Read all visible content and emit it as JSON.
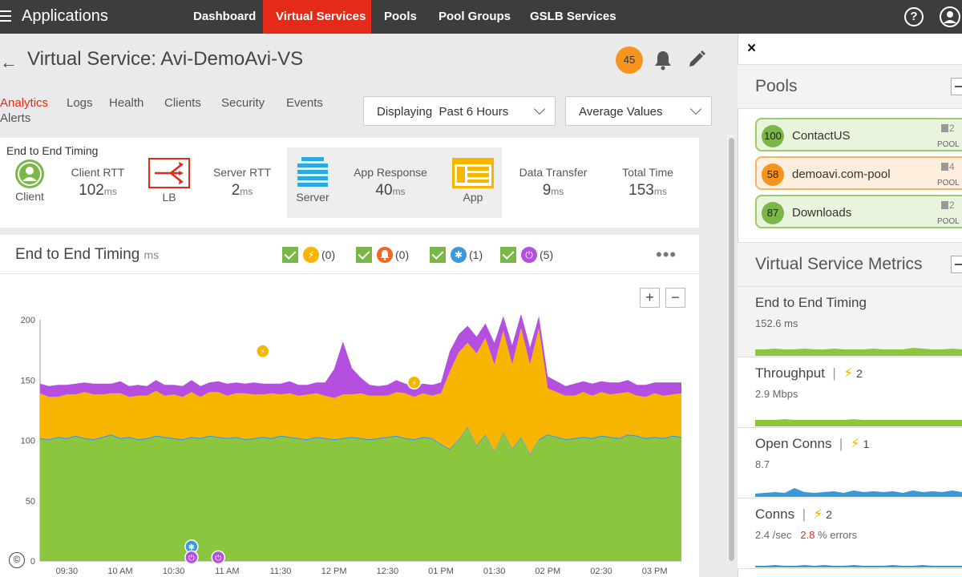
{
  "topbar": {
    "app_title": "Applications",
    "nav": [
      "Dashboard",
      "Virtual Services",
      "Pools",
      "Pool Groups",
      "GSLB Services"
    ],
    "active_nav": "Virtual Services",
    "help": "?"
  },
  "header": {
    "back": "←",
    "title": "Virtual Service: Avi-DemoAvi-VS",
    "alert_count": "45"
  },
  "tabs": [
    "Analytics",
    "Logs",
    "Health",
    "Clients",
    "Security",
    "Events",
    "Alerts"
  ],
  "filters": {
    "time_range": "Displaying  Past 6 Hours",
    "values_mode": "Average Values"
  },
  "timing": {
    "title": "End to End Timing",
    "client_label": "Client",
    "client_rtt_label": "Client RTT",
    "client_rtt_value": "102",
    "lb_label": "LB",
    "server_rtt_label": "Server RTT",
    "server_rtt_value": "2",
    "server_label": "Server",
    "app_response_label": "App Response",
    "app_response_value": "40",
    "app_label": "App",
    "data_transfer_label": "Data Transfer",
    "data_transfer_value": "9",
    "total_time_label": "Total Time",
    "total_time_value": "153",
    "unit": "ms"
  },
  "chart_card": {
    "title": "End to End Timing",
    "unit": "ms",
    "legend": [
      {
        "icon": "bolt-icon",
        "color": "#f7b500",
        "count": "(0)"
      },
      {
        "icon": "bell-icon",
        "color": "#f26522",
        "count": "(0)"
      },
      {
        "icon": "gear-icon",
        "color": "#3a9ad9",
        "count": "(1)"
      },
      {
        "icon": "power-icon",
        "color": "#b44fe0",
        "count": "(5)"
      }
    ],
    "more": "•••",
    "zoom_in": "+",
    "zoom_out": "−"
  },
  "chart_data": {
    "type": "area",
    "stacked": true,
    "title": "End to End Timing",
    "ylabel": "ms",
    "ylim": [
      0,
      200
    ],
    "yticks": [
      0,
      50,
      100,
      150,
      200
    ],
    "xtick_labels": [
      "09:30",
      "10 AM",
      "10:30",
      "11 AM",
      "11:30",
      "12 PM",
      "12:30",
      "01 PM",
      "01:30",
      "02 PM",
      "02:30",
      "03 PM"
    ],
    "x": [
      0,
      0.167,
      0.333,
      0.5,
      0.667,
      0.833,
      1,
      1.167,
      1.333,
      1.5,
      1.667,
      1.833,
      2,
      2.167,
      2.333,
      2.5,
      2.667,
      2.833,
      3,
      3.167,
      3.333,
      3.5,
      3.667,
      3.833,
      4,
      4.167,
      4.333,
      4.5,
      4.667,
      4.833,
      5,
      5.167,
      5.333,
      5.5,
      5.667,
      5.833,
      6,
      6.167,
      6.333,
      6.5,
      6.667,
      6.833,
      7,
      7.167,
      7.333,
      7.5,
      7.667,
      7.833,
      8,
      8.167,
      8.333,
      8.5,
      8.667,
      8.833,
      9,
      9.167,
      9.333,
      9.5,
      9.667,
      9.833,
      10,
      10.167,
      10.333,
      10.5,
      10.667,
      10.833,
      11,
      11.167,
      11.333,
      11.5,
      11.667,
      11.833,
      12
    ],
    "series": [
      {
        "color": "#8cc63f",
        "values": [
          101,
          100,
          102,
          101,
          103,
          101,
          100,
          102,
          104,
          101,
          102,
          100,
          101,
          103,
          102,
          101,
          100,
          102,
          101,
          103,
          102,
          101,
          102,
          100,
          101,
          102,
          101,
          103,
          102,
          101,
          100,
          102,
          101,
          100,
          101,
          102,
          101,
          100,
          101,
          102,
          103,
          101,
          100,
          102,
          101,
          96,
          92,
          100,
          110,
          95,
          104,
          90,
          106,
          92,
          102,
          88,
          100,
          104,
          102,
          100,
          101,
          102,
          101,
          103,
          102,
          101,
          104,
          103,
          101,
          102,
          101,
          103,
          102
        ]
      },
      {
        "color": "#3a9ad9",
        "values": [
          1,
          1,
          1,
          1,
          1,
          1,
          1,
          1,
          1,
          1,
          1,
          1,
          1,
          1,
          1,
          1,
          1,
          1,
          1,
          1,
          1,
          1,
          1,
          1,
          1,
          1,
          1,
          1,
          1,
          1,
          1,
          1,
          1,
          1,
          1,
          1,
          1,
          1,
          1,
          1,
          1,
          1,
          1,
          1,
          1,
          1,
          1,
          1,
          1,
          1,
          1,
          1,
          1,
          1,
          1,
          1,
          1,
          1,
          1,
          1,
          1,
          1,
          1,
          1,
          1,
          1,
          1,
          1,
          1,
          1,
          1,
          1,
          1
        ]
      },
      {
        "color": "#f7b500",
        "values": [
          37,
          35,
          33,
          36,
          34,
          38,
          37,
          35,
          34,
          37,
          33,
          36,
          35,
          37,
          34,
          36,
          35,
          37,
          34,
          36,
          37,
          35,
          36,
          38,
          36,
          35,
          37,
          34,
          36,
          35,
          37,
          36,
          35,
          34,
          36,
          35,
          37,
          36,
          35,
          34,
          36,
          37,
          35,
          36,
          35,
          42,
          64,
          72,
          70,
          76,
          80,
          72,
          84,
          70,
          90,
          74,
          92,
          38,
          37,
          36,
          35,
          37,
          35,
          36,
          35,
          37,
          35,
          33,
          34,
          36,
          35,
          34,
          36
        ]
      },
      {
        "color": "#b44fe0",
        "values": [
          8,
          9,
          10,
          8,
          9,
          8,
          9,
          9,
          8,
          10,
          9,
          9,
          8,
          9,
          9,
          8,
          9,
          10,
          9,
          8,
          9,
          10,
          9,
          8,
          10,
          9,
          8,
          9,
          10,
          9,
          8,
          9,
          11,
          24,
          44,
          22,
          13,
          9,
          8,
          9,
          10,
          8,
          9,
          8,
          9,
          9,
          17,
          15,
          14,
          14,
          12,
          18,
          12,
          16,
          12,
          14,
          10,
          10,
          9,
          8,
          10,
          9,
          10,
          9,
          10,
          9,
          10,
          9,
          10,
          9,
          11,
          10,
          9
        ]
      }
    ]
  },
  "rpanel": {
    "close": "×",
    "pools_title": "Pools",
    "pools": [
      {
        "score": "100",
        "name": "ContactUS",
        "count": "2",
        "label": "POOL",
        "color": "#7ab648",
        "bg": "#e9f4dc",
        "border": "#9ccb6d"
      },
      {
        "score": "58",
        "name": "demoavi.com-pool",
        "count": "4",
        "label": "POOL",
        "color": "#f7941d",
        "bg": "#fdeedd",
        "border": "#f3b46a"
      },
      {
        "score": "87",
        "name": "Downloads",
        "count": "2",
        "label": "POOL",
        "color": "#7ab648",
        "bg": "#e9f4dc",
        "border": "#9ccb6d"
      }
    ],
    "metrics_title": "Virtual Service Metrics",
    "metrics": [
      {
        "title": "End to End Timing",
        "value": "152.6",
        "unit": "ms",
        "alerts": "",
        "spark_color": "#8cc63f"
      },
      {
        "title": "Throughput",
        "value": "2.9",
        "unit": "Mbps",
        "alerts": "2",
        "spark_color": "#8cc63f"
      },
      {
        "title": "Open Conns",
        "value": "8.7",
        "unit": "",
        "alerts": "1",
        "spark_color": "#3a9ad9"
      },
      {
        "title": "Conns",
        "value": "2.4",
        "unit": "/sec",
        "alerts": "2",
        "errors": "2.8",
        "errors_label": "% errors",
        "spark_color": "#3a9ad9"
      }
    ]
  },
  "copyright": "©"
}
